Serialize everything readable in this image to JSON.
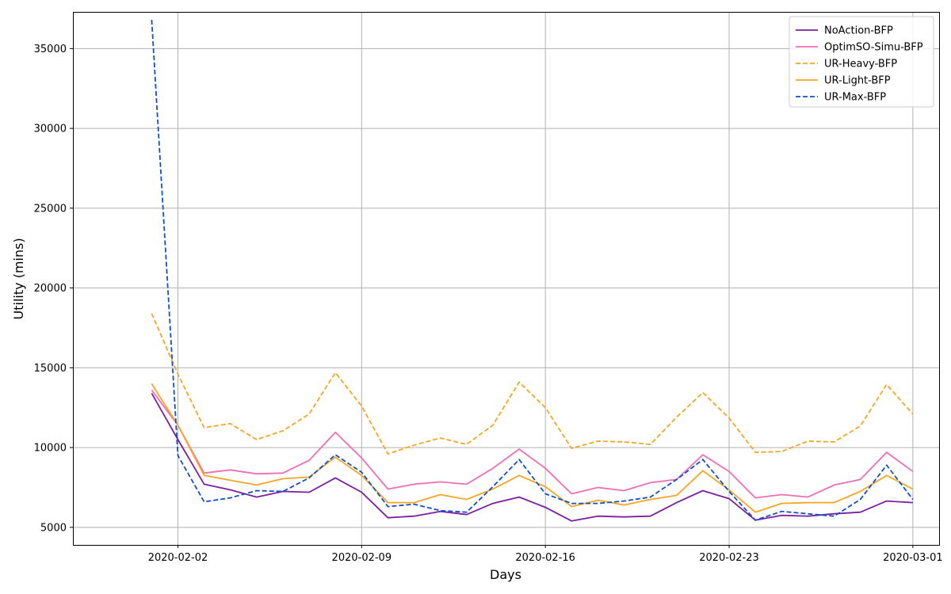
{
  "chart_data": {
    "type": "line",
    "xlabel": "Days",
    "ylabel": "Utility (mins)",
    "xlim": [
      "2020-01-29",
      "2020-03-02"
    ],
    "ylim": [
      3900,
      37300
    ],
    "grid": true,
    "legend_position": "top-right",
    "x_ticks": [
      "2020-02-02",
      "2020-02-09",
      "2020-02-16",
      "2020-02-23",
      "2020-03-01"
    ],
    "y_ticks": [
      5000,
      10000,
      15000,
      20000,
      25000,
      30000,
      35000
    ],
    "x": [
      "2020-02-01",
      "2020-02-02",
      "2020-02-03",
      "2020-02-04",
      "2020-02-05",
      "2020-02-06",
      "2020-02-07",
      "2020-02-08",
      "2020-02-09",
      "2020-02-10",
      "2020-02-11",
      "2020-02-12",
      "2020-02-13",
      "2020-02-14",
      "2020-02-15",
      "2020-02-16",
      "2020-02-17",
      "2020-02-18",
      "2020-02-19",
      "2020-02-20",
      "2020-02-21",
      "2020-02-22",
      "2020-02-23",
      "2020-02-24",
      "2020-02-25",
      "2020-02-26",
      "2020-02-27",
      "2020-02-28",
      "2020-02-29",
      "2020-03-01"
    ],
    "series": [
      {
        "name": "NoAction-BFP",
        "color": "#7b1fa2",
        "dash": "solid",
        "values": [
          13400,
          10500,
          7700,
          7350,
          6900,
          7250,
          7200,
          8100,
          7200,
          5600,
          5700,
          6000,
          5800,
          6500,
          6900,
          6250,
          5400,
          5700,
          5650,
          5700,
          6550,
          7300,
          6800,
          5450,
          5750,
          5700,
          5850,
          5950,
          6650,
          6550
        ]
      },
      {
        "name": "OptimSO-Simu-BFP",
        "color": "#f06eb4",
        "dash": "solid",
        "values": [
          13600,
          11400,
          8400,
          8600,
          8350,
          8400,
          9200,
          10950,
          9350,
          7400,
          7700,
          7850,
          7700,
          8700,
          9900,
          8700,
          7100,
          7500,
          7300,
          7800,
          8000,
          9550,
          8500,
          6850,
          7050,
          6900,
          7650,
          8000,
          9700,
          8500
        ]
      },
      {
        "name": "UR-Heavy-BFP",
        "color": "#f5a623",
        "dash": "dashed",
        "values": [
          18400,
          14600,
          11250,
          11500,
          10500,
          11050,
          12100,
          14700,
          12600,
          9600,
          10150,
          10600,
          10200,
          11400,
          14100,
          12500,
          9950,
          10400,
          10350,
          10200,
          11900,
          13450,
          11850,
          9700,
          9750,
          10400,
          10350,
          11350,
          13950,
          12100
        ]
      },
      {
        "name": "UR-Light-BFP",
        "color": "#f5a623",
        "dash": "solid",
        "values": [
          14000,
          11400,
          8250,
          7950,
          7650,
          8050,
          8150,
          9400,
          8250,
          6550,
          6550,
          7050,
          6750,
          7400,
          8250,
          7550,
          6300,
          6700,
          6400,
          6750,
          7000,
          8550,
          7350,
          5950,
          6500,
          6550,
          6550,
          7250,
          8250,
          7400
        ]
      },
      {
        "name": "UR-Max-BFP",
        "color": "#1150c8",
        "dash": "dashed",
        "values": [
          36800,
          9500,
          6600,
          6850,
          7300,
          7250,
          8100,
          9550,
          8450,
          6300,
          6450,
          6050,
          5950,
          7550,
          9250,
          7100,
          6500,
          6500,
          6650,
          6900,
          8000,
          9250,
          7250,
          5450,
          6000,
          5850,
          5700,
          6750,
          8900,
          6750
        ]
      }
    ]
  }
}
